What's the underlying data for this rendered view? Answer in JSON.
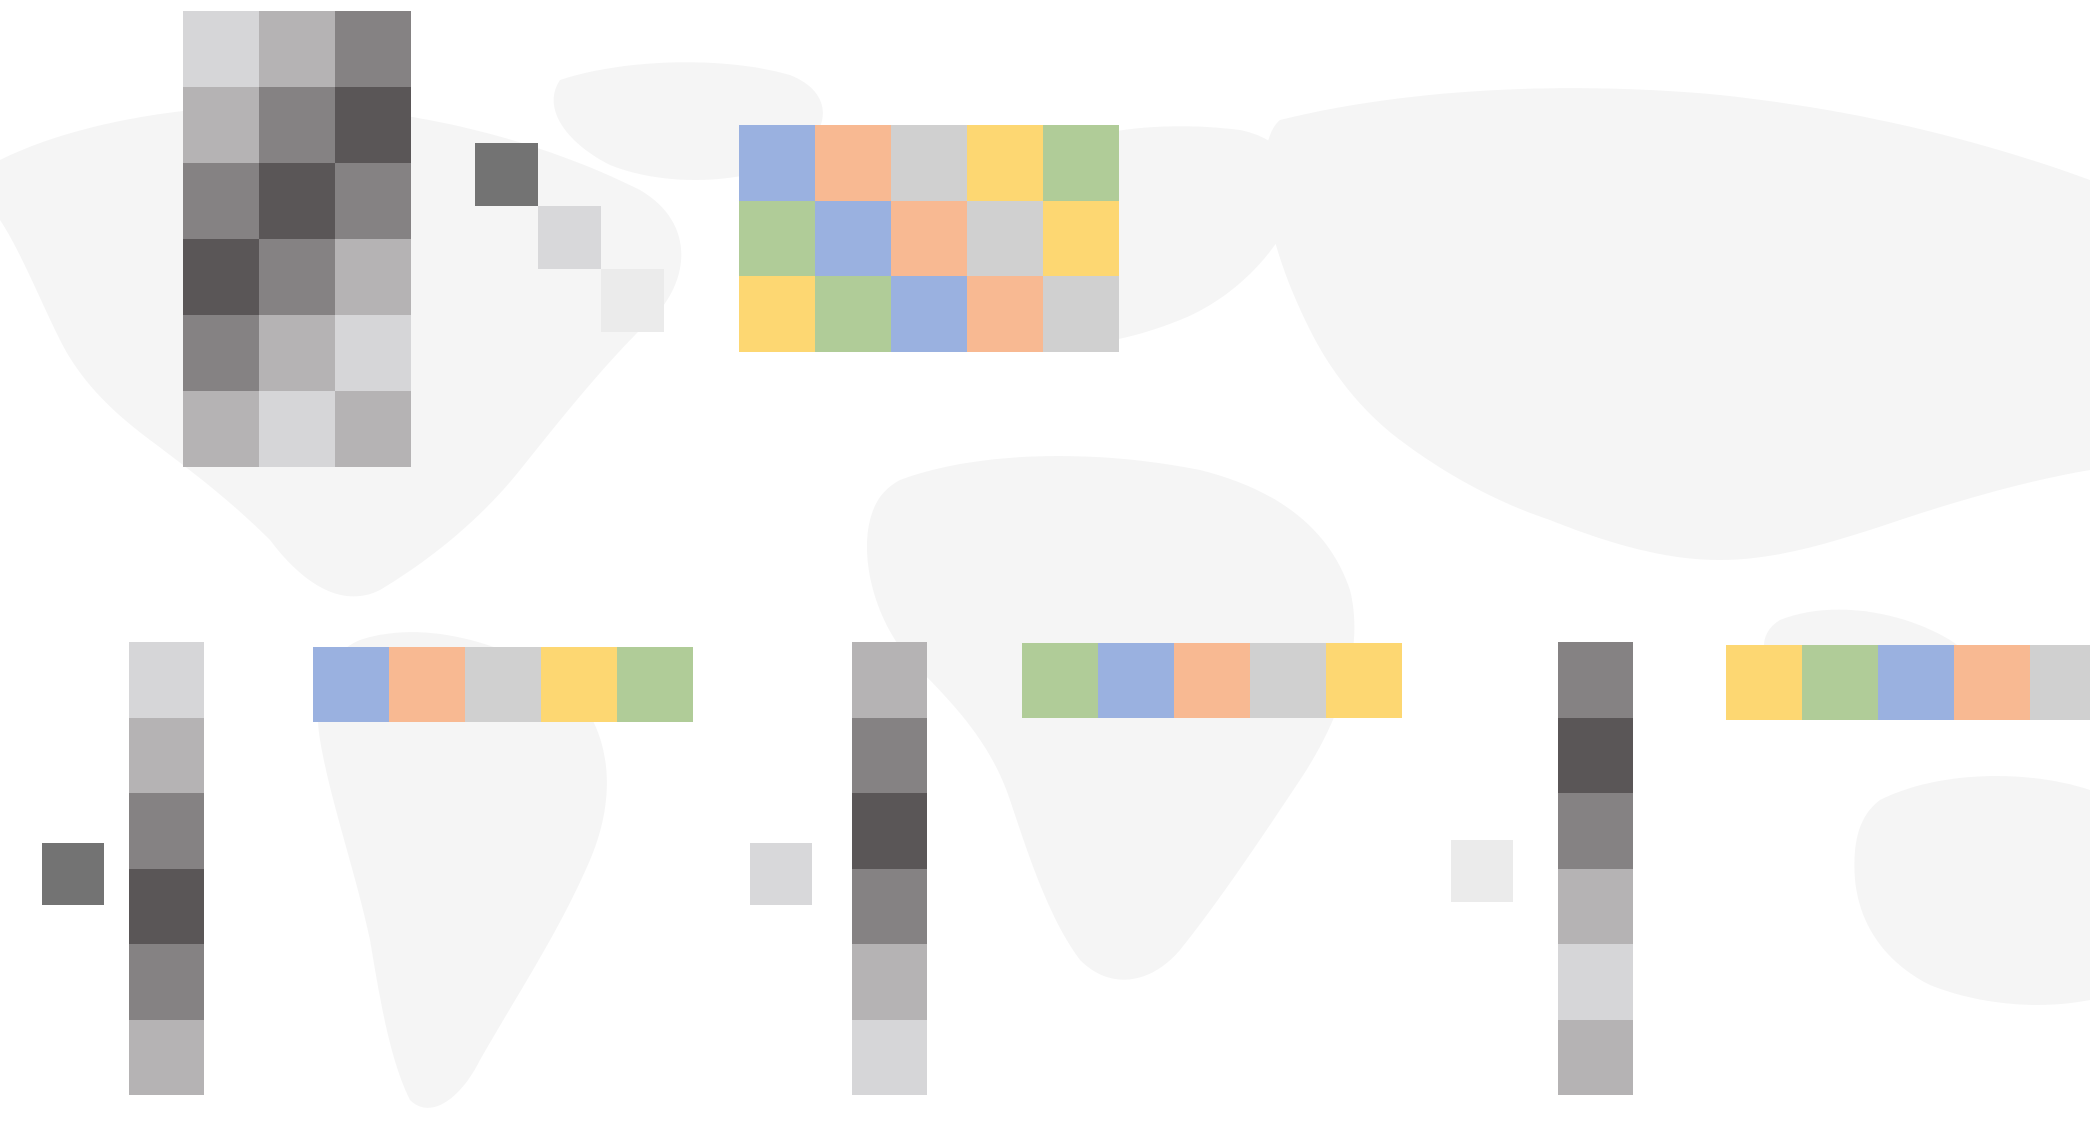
{
  "background": {
    "map": "world-map-watermark",
    "map_color": "#f4f4f4",
    "background_color": "#ffffff"
  },
  "palette": {
    "gray_1": "#d6d6d8",
    "gray_2": "#b5b3b4",
    "gray_3": "#858283",
    "gray_4": "#5a5657",
    "diag_dark": "#737373",
    "diag_mid": "#d8d8da",
    "diag_light": "#ebebeb",
    "blue": "#9ab1e0",
    "orange": "#f8b992",
    "gray": "#d0d0d0",
    "yellow": "#fdd772",
    "green": "#b0cc98"
  },
  "diagram": {
    "u_matrix": [
      [
        "gray_1",
        "gray_2",
        "gray_3"
      ],
      [
        "gray_2",
        "gray_3",
        "gray_4"
      ],
      [
        "gray_3",
        "gray_4",
        "gray_3"
      ],
      [
        "gray_4",
        "gray_3",
        "gray_2"
      ],
      [
        "gray_3",
        "gray_2",
        "gray_1"
      ],
      [
        "gray_2",
        "gray_1",
        "gray_2"
      ]
    ],
    "sigma_diagonal": [
      "diag_dark",
      "diag_mid",
      "diag_light"
    ],
    "v_matrix": [
      [
        "blue",
        "orange",
        "gray",
        "yellow",
        "green"
      ],
      [
        "green",
        "blue",
        "orange",
        "gray",
        "yellow"
      ],
      [
        "yellow",
        "green",
        "blue",
        "orange",
        "gray"
      ]
    ],
    "rank_one_terms": [
      {
        "scalar": "diag_dark",
        "column": [
          "gray_1",
          "gray_2",
          "gray_3",
          "gray_4",
          "gray_3",
          "gray_2"
        ],
        "row": [
          "blue",
          "orange",
          "gray",
          "yellow",
          "green"
        ]
      },
      {
        "scalar": "diag_mid",
        "column": [
          "gray_2",
          "gray_3",
          "gray_4",
          "gray_3",
          "gray_2",
          "gray_1"
        ],
        "row": [
          "green",
          "blue",
          "orange",
          "gray",
          "yellow"
        ]
      },
      {
        "scalar": "diag_light",
        "column": [
          "gray_3",
          "gray_4",
          "gray_3",
          "gray_2",
          "gray_1",
          "gray_2"
        ],
        "row": [
          "yellow",
          "green",
          "blue",
          "orange",
          "gray"
        ]
      }
    ]
  }
}
